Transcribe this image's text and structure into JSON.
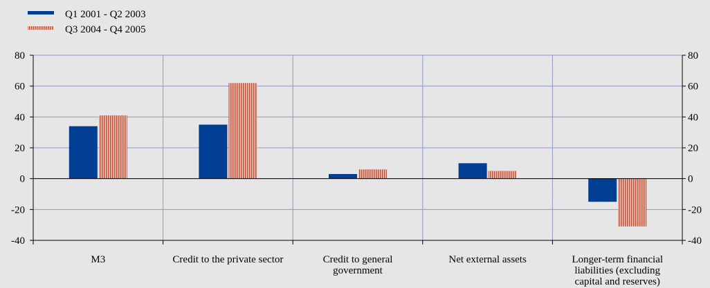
{
  "colors": {
    "background": "#e6e6e6",
    "series1": "#003f93",
    "series2_base": "#f0c7b8",
    "series2_stripe": "#c0503a",
    "grid": "#8f98c8",
    "axis": "#000000"
  },
  "chart_data": {
    "type": "bar",
    "title": "",
    "xlabel": "",
    "ylabel": "",
    "ylim": [
      -40,
      80
    ],
    "yticks": [
      "80",
      "60",
      "40",
      "20",
      "0",
      "-20",
      "-40"
    ],
    "ytick_values": [
      80,
      60,
      40,
      20,
      0,
      -20,
      -40
    ],
    "grid": true,
    "legend_position": "top-left",
    "dual_y_axis": true,
    "categories": [
      [
        "M3"
      ],
      [
        "Credit to the private sector"
      ],
      [
        "Credit to general",
        "government"
      ],
      [
        "Net external assets"
      ],
      [
        "Longer-term financial",
        "liabilities (excluding",
        "capital and reserves)"
      ]
    ],
    "series": [
      {
        "name": "Q1 2001 - Q2 2003",
        "style": "solid",
        "values": [
          34,
          35,
          3,
          10,
          -15
        ]
      },
      {
        "name": "Q3 2004 - Q4 2005",
        "style": "striped",
        "values": [
          41,
          62,
          6,
          5,
          -31
        ]
      }
    ]
  }
}
